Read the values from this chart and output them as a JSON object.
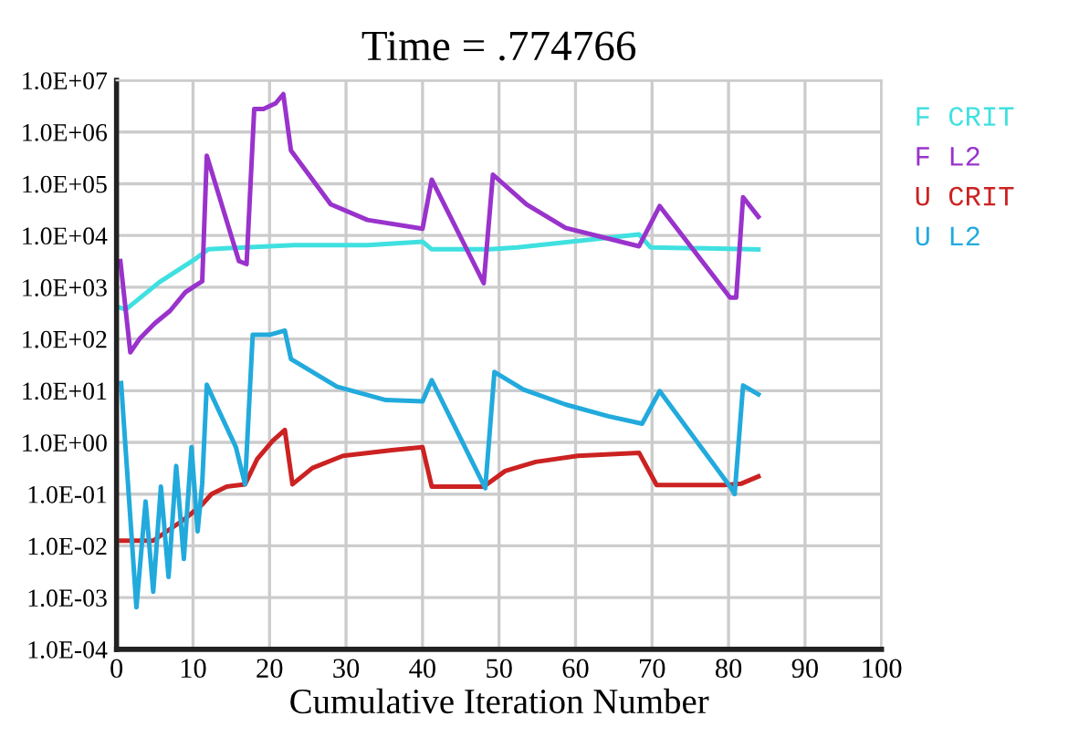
{
  "chart_data": {
    "type": "line",
    "title": "Time = .774766",
    "xlabel": "Cumulative Iteration Number",
    "log": "y",
    "grid": true,
    "legend": "right",
    "marker": "none",
    "line_style": "solid",
    "xlim": [
      0,
      100
    ],
    "xticks": [
      0,
      10,
      20,
      30,
      40,
      50,
      60,
      70,
      80,
      90,
      100
    ],
    "ylim": [
      0.0001,
      10000000
    ],
    "yticks": [
      {
        "value": 0.0001,
        "label": "1.0E-04"
      },
      {
        "value": 0.001,
        "label": "1.0E-03"
      },
      {
        "value": 0.01,
        "label": "1.0E-02"
      },
      {
        "value": 0.1,
        "label": "1.0E-01"
      },
      {
        "value": 1,
        "label": "1.0E+00"
      },
      {
        "value": 10,
        "label": "1.0E+01"
      },
      {
        "value": 100,
        "label": "1.0E+02"
      },
      {
        "value": 1000,
        "label": "1.0E+03"
      },
      {
        "value": 10000,
        "label": "1.0E+04"
      },
      {
        "value": 100000,
        "label": "1.0E+05"
      },
      {
        "value": 1000000,
        "label": "1.0E+06"
      },
      {
        "value": 10000000,
        "label": "1.0E+07"
      }
    ],
    "series": [
      {
        "name": "F CRIT",
        "color": "#40e0e0",
        "x": [
          0.5,
          1.2,
          5.6,
          10.4,
          12,
          16.8,
          23.2,
          32.8,
          40,
          41.2,
          48.8,
          52.4,
          68.3,
          69.8,
          83.9
        ],
        "values": [
          400,
          370,
          1250,
          3600,
          5400,
          5900,
          6500,
          6500,
          7600,
          5400,
          5400,
          5900,
          10500,
          5900,
          5400
        ]
      },
      {
        "name": "F L2",
        "color": "#9933cc",
        "x": [
          0.5,
          1.8,
          3,
          5,
          7,
          9,
          10.4,
          11.2,
          11.8,
          16,
          17,
          18,
          19.2,
          20.8,
          21.8,
          22.8,
          28,
          32.8,
          40,
          41.2,
          48,
          49.2,
          53.6,
          58.7,
          68.3,
          71,
          80.2,
          81,
          81.9,
          83.9
        ],
        "values": [
          3200,
          55,
          100,
          200,
          350,
          800,
          1100,
          1300,
          350000,
          3200,
          2800,
          2800000,
          2800000,
          3600000,
          5400000,
          440000,
          40000,
          20000,
          13500,
          120000,
          1200,
          150000,
          40000,
          14000,
          6200,
          37000,
          630,
          630,
          55000,
          23000
        ]
      },
      {
        "name": "U CRIT",
        "color": "#cc2222",
        "x": [
          0.6,
          4.8,
          8.8,
          11.2,
          12.4,
          14.4,
          16.8,
          18.4,
          20.4,
          22,
          23,
          25.6,
          29.6,
          36,
          40,
          41.2,
          48,
          50.8,
          54.8,
          60.3,
          68.3,
          70.6,
          79.4,
          81.7,
          83.9
        ],
        "values": [
          0.0126,
          0.0126,
          0.032,
          0.063,
          0.1,
          0.14,
          0.155,
          0.48,
          1.07,
          1.74,
          0.155,
          0.32,
          0.55,
          0.71,
          0.81,
          0.14,
          0.14,
          0.28,
          0.42,
          0.55,
          0.63,
          0.15,
          0.15,
          0.16,
          0.22
        ]
      },
      {
        "name": "U L2",
        "color": "#22aadd",
        "x": [
          0.6,
          2.6,
          3.8,
          4.8,
          5.8,
          6.8,
          7.8,
          8.8,
          9.8,
          10.6,
          11.2,
          11.8,
          15.6,
          16.8,
          17.8,
          20,
          22,
          22.8,
          28.8,
          35.2,
          40,
          41.2,
          48.2,
          49.4,
          53.2,
          58.7,
          64.3,
          68.7,
          71,
          80.2,
          80.8,
          81.9,
          83.9
        ],
        "values": [
          14,
          0.00065,
          0.072,
          0.0013,
          0.14,
          0.0025,
          0.35,
          0.0056,
          0.81,
          0.019,
          0.16,
          13,
          0.81,
          0.155,
          120,
          120,
          145,
          41,
          12,
          6.6,
          6.2,
          16,
          0.13,
          23,
          10.5,
          5.4,
          3.2,
          2.3,
          9.8,
          0.14,
          0.1,
          12.6,
          8.5
        ]
      }
    ]
  }
}
